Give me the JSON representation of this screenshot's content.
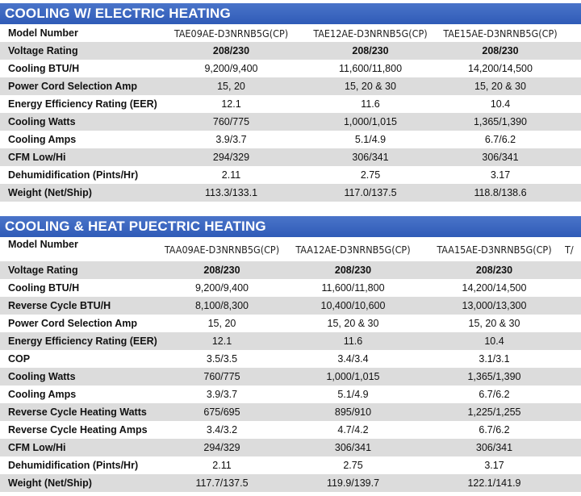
{
  "sections": [
    {
      "title": "COOLING W/ ELECTRIC HEATING",
      "models": [
        "TAE09AE-D3NRNB5G(CP)",
        "TAE12AE-D3NRNB5G(CP)",
        "TAE15AE-D3NRNB5G(CP)"
      ],
      "model_label": "Model Number",
      "rows": [
        {
          "label": "Voltage Rating",
          "values": [
            "208/230",
            "208/230",
            "208/230"
          ]
        },
        {
          "label": "Cooling BTU/H",
          "values": [
            "9,200/9,400",
            "11,600/11,800",
            "14,200/14,500"
          ]
        },
        {
          "label": "Power Cord Selection Amp",
          "values": [
            "15, 20",
            "15, 20 & 30",
            "15, 20 & 30"
          ]
        },
        {
          "label": "Energy Efficiency Rating (EER)",
          "values": [
            "12.1",
            "11.6",
            "10.4"
          ]
        },
        {
          "label": "Cooling Watts",
          "values": [
            "760/775",
            "1,000/1,015",
            "1,365/1,390"
          ]
        },
        {
          "label": "Cooling Amps",
          "values": [
            "3.9/3.7",
            "5.1/4.9",
            "6.7/6.2"
          ]
        },
        {
          "label": "CFM Low/Hi",
          "values": [
            "294/329",
            "306/341",
            "306/341"
          ]
        },
        {
          "label": "Dehumidification (Pints/Hr)",
          "values": [
            "2.11",
            "2.75",
            "3.17"
          ]
        },
        {
          "label": "Weight (Net/Ship)",
          "values": [
            "113.3/133.1",
            "117.0/137.5",
            "118.8/138.6"
          ]
        }
      ]
    },
    {
      "title": "COOLING & HEAT PUECTRIC HEATING",
      "models": [
        "TAA09AE-D3NRNB5G(CP)",
        "TAA12AE-D3NRNB5G(CP)",
        "TAA15AE-D3NRNB5G(CP)"
      ],
      "model_extra": "T/",
      "model_label": "Model Number",
      "rows": [
        {
          "label": "Voltage Rating",
          "values": [
            "208/230",
            "208/230",
            "208/230"
          ]
        },
        {
          "label": "Cooling BTU/H",
          "values": [
            "9,200/9,400",
            "11,600/11,800",
            "14,200/14,500"
          ]
        },
        {
          "label": "Reverse Cycle BTU/H",
          "values": [
            "8,100/8,300",
            "10,400/10,600",
            "13,000/13,300"
          ]
        },
        {
          "label": "Power Cord Selection Amp",
          "values": [
            "15, 20",
            "15, 20 & 30",
            "15, 20 & 30"
          ]
        },
        {
          "label": "Energy Efficiency Rating (EER)",
          "values": [
            "12.1",
            "11.6",
            "10.4"
          ]
        },
        {
          "label": "COP",
          "values": [
            "3.5/3.5",
            "3.4/3.4",
            "3.1/3.1"
          ]
        },
        {
          "label": "Cooling Watts",
          "values": [
            "760/775",
            "1,000/1,015",
            "1,365/1,390"
          ]
        },
        {
          "label": "Cooling Amps",
          "values": [
            "3.9/3.7",
            "5.1/4.9",
            "6.7/6.2"
          ]
        },
        {
          "label": "Reverse Cycle Heating Watts",
          "values": [
            "675/695",
            "895/910",
            "1,225/1,255"
          ]
        },
        {
          "label": "Reverse Cycle Heating Amps",
          "values": [
            "3.4/3.2",
            "4.7/4.2",
            "6.7/6.2"
          ]
        },
        {
          "label": "CFM Low/Hi",
          "values": [
            "294/329",
            "306/341",
            "306/341"
          ]
        },
        {
          "label": "Dehumidification (Pints/Hr)",
          "values": [
            "2.11",
            "2.75",
            "3.17"
          ]
        },
        {
          "label": "Weight (Net/Ship)",
          "values": [
            "117.7/137.5",
            "119.9/139.7",
            "122.1/141.9"
          ]
        }
      ]
    }
  ]
}
